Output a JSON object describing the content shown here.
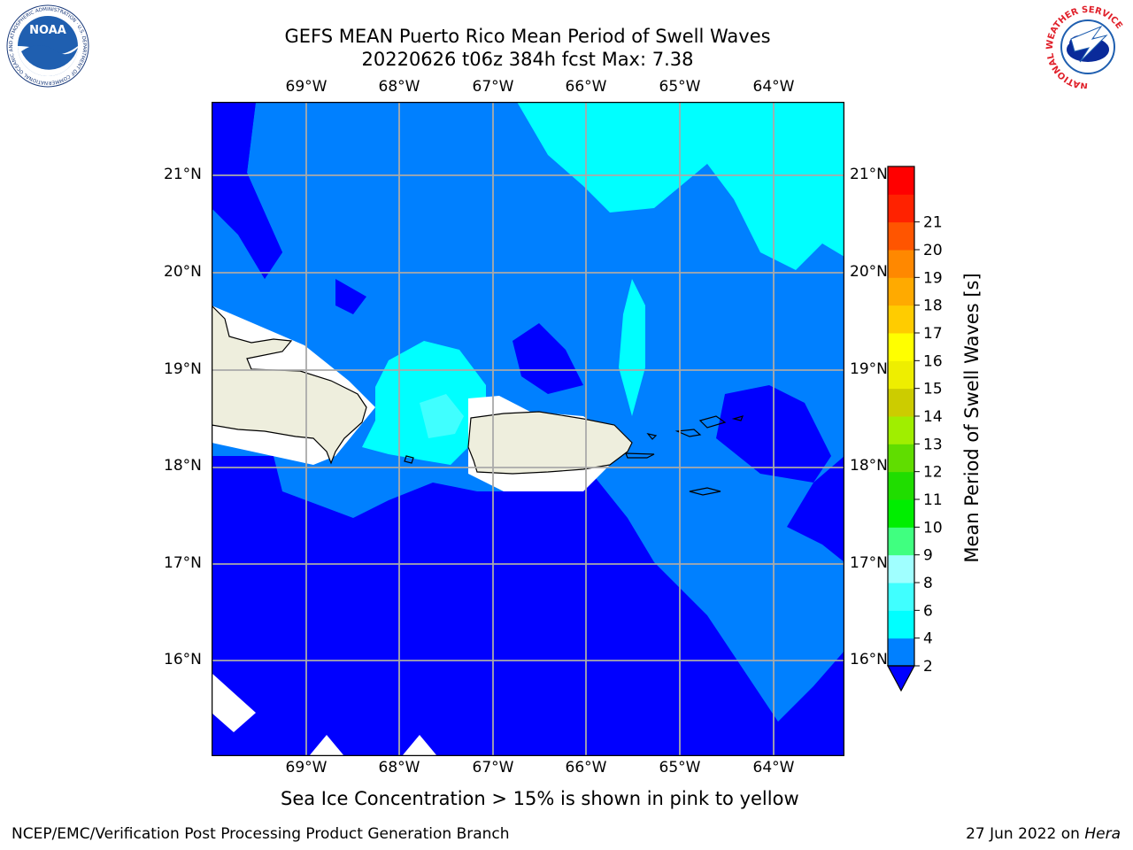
{
  "header": {
    "title_line1": "GEFS MEAN Puerto Rico Mean Period of Swell Waves",
    "title_line2": "20220626 t06z 384h fcst   Max: 7.38"
  },
  "map": {
    "lon_labels": [
      "69°W",
      "68°W",
      "67°W",
      "66°W",
      "65°W",
      "64°W"
    ],
    "lat_labels": [
      "21°N",
      "20°N",
      "19°N",
      "18°N",
      "17°N",
      "16°N"
    ],
    "land_color": "#eeeedd",
    "contour_colors": {
      "2-4": "#0080ff",
      "4-6": "#00ffff",
      "6-8": "#40ffff",
      "below_2": "#0000ff"
    }
  },
  "colorbar": {
    "label": "Mean Period of Swell Waves [s]",
    "ticks": [
      "2",
      "4",
      "6",
      "8",
      "9",
      "10",
      "11",
      "12",
      "13",
      "14",
      "15",
      "16",
      "17",
      "18",
      "19",
      "20",
      "21"
    ],
    "colors": [
      "#0080ff",
      "#00ffff",
      "#40ffff",
      "#a0ffff",
      "#40ff80",
      "#00ee00",
      "#20dd00",
      "#60dd00",
      "#a0ee00",
      "#cccc00",
      "#eeee00",
      "#ffff00",
      "#ffcc00",
      "#ffaa00",
      "#ff8800",
      "#ff5500",
      "#ff2200",
      "#ff0000"
    ],
    "under_color": "#0000ff"
  },
  "notes": {
    "sea_ice": "Sea Ice Concentration > 15% is shown in pink to yellow"
  },
  "footer": {
    "left": "NCEP/EMC/Verification Post Processing Product Generation Branch",
    "right_date": "27 Jun 2022 on ",
    "right_machine": "Hera"
  },
  "logos": {
    "noaa_text": "NOAA",
    "noaa_ring": "NATIONAL OCEANIC AND ATMOSPHERIC ADMINISTRATION · U.S. DEPARTMENT OF COMMERCE",
    "nws_ring": "NATIONAL WEATHER SERVICE"
  }
}
